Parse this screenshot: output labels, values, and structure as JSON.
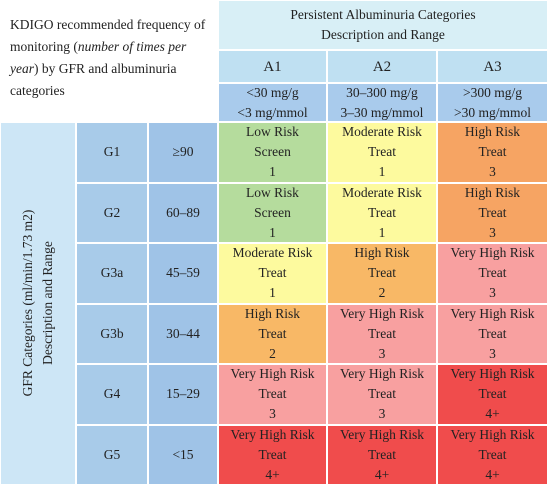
{
  "intro": [
    "KDIGO recommended frequency of monitoring (",
    "number of times per year",
    ") by GFR and albuminuria categories"
  ],
  "header": {
    "title": "Persistent Albuminuria Categories",
    "subtitle": "Description and Range",
    "columns": [
      {
        "label": "A1",
        "range": [
          "<30 mg/g",
          "<3 mg/mmol"
        ]
      },
      {
        "label": "A2",
        "range": [
          "30–300 mg/g",
          "3–30 mg/mmol"
        ]
      },
      {
        "label": "A3",
        "range": [
          ">300 mg/g",
          ">30 mg/mmol"
        ]
      }
    ]
  },
  "row_axis_label": [
    "GFR Categories (ml/min/1.73 m2)",
    "Description and Range"
  ],
  "rows": [
    {
      "label": "G1",
      "range": "≥90",
      "cells": [
        {
          "risk": "Low Risk",
          "action": "Screen",
          "frequency": 1,
          "color": "#b5dc9d"
        },
        {
          "risk": "Moderate Risk",
          "action": "Treat",
          "frequency": 1,
          "color": "#fdfa9e"
        },
        {
          "risk": "High Risk",
          "action": "Treat",
          "frequency": 3,
          "color": "#f6a463"
        }
      ]
    },
    {
      "label": "G2",
      "range": "60–89",
      "cells": [
        {
          "risk": "Low Risk",
          "action": "Screen",
          "frequency": 1,
          "color": "#b5dc9d"
        },
        {
          "risk": "Moderate Risk",
          "action": "Treat",
          "frequency": 1,
          "color": "#fdfa9e"
        },
        {
          "risk": "High Risk",
          "action": "Treat",
          "frequency": 3,
          "color": "#f6a463"
        }
      ]
    },
    {
      "label": "G3a",
      "range": "45–59",
      "cells": [
        {
          "risk": "Moderate Risk",
          "action": "Treat",
          "frequency": 1,
          "color": "#fdfa9e"
        },
        {
          "risk": "High Risk",
          "action": "Treat",
          "frequency": 2,
          "color": "#f8b866"
        },
        {
          "risk": "Very High Risk",
          "action": "Treat",
          "frequency": 3,
          "color": "#f8a0a0"
        }
      ]
    },
    {
      "label": "G3b",
      "range": "30–44",
      "cells": [
        {
          "risk": "High Risk",
          "action": "Treat",
          "frequency": 2,
          "color": "#f8b866"
        },
        {
          "risk": "Very High Risk",
          "action": "Treat",
          "frequency": 3,
          "color": "#f8a0a0"
        },
        {
          "risk": "Very High Risk",
          "action": "Treat",
          "frequency": 3,
          "color": "#f8a0a0"
        }
      ]
    },
    {
      "label": "G4",
      "range": "15–29",
      "cells": [
        {
          "risk": "Very High Risk",
          "action": "Treat",
          "frequency": 3,
          "color": "#f8a0a0"
        },
        {
          "risk": "Very High Risk",
          "action": "Treat",
          "frequency": 3,
          "color": "#f8a0a0"
        },
        {
          "risk": "Very High Risk",
          "action": "Treat",
          "frequency": "4+",
          "color": "#f04c4c"
        }
      ]
    },
    {
      "label": "G5",
      "range": "<15",
      "cells": [
        {
          "risk": "Very High Risk",
          "action": "Treat",
          "frequency": "4+",
          "color": "#f04c4c"
        },
        {
          "risk": "Very High Risk",
          "action": "Treat",
          "frequency": "4+",
          "color": "#f04c4c"
        },
        {
          "risk": "Very High Risk",
          "action": "Treat",
          "frequency": "4+",
          "color": "#f04c4c"
        }
      ]
    }
  ]
}
